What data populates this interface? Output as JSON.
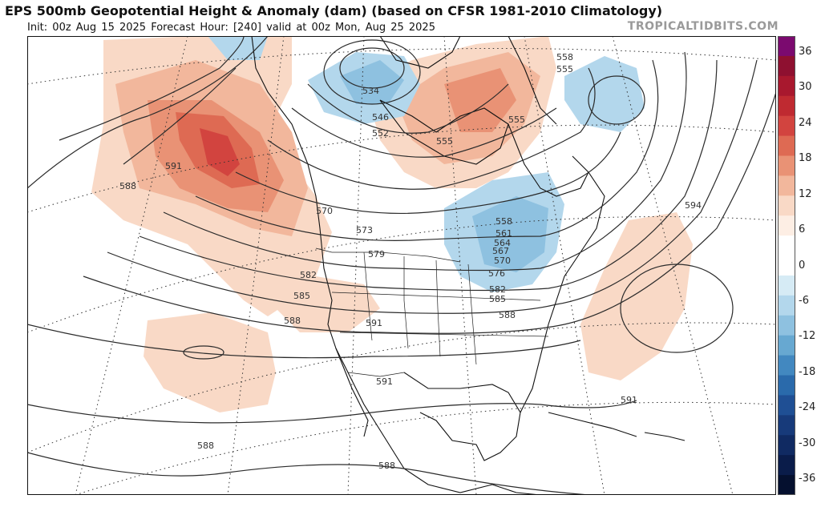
{
  "header": {
    "title": "EPS 500mb Geopotential Height & Anomaly (dam) (based on CFSR 1981-2010 Climatology)",
    "init": "Init: 00z Aug 15 2025",
    "forecast_hour": "Forecast Hour: [240]",
    "valid": "valid at 00z Mon, Aug 25 2025",
    "brand": "TROPICALTIDBITS.COM"
  },
  "colorbar": {
    "labels": [
      "36",
      "30",
      "24",
      "18",
      "12",
      "6",
      "0",
      "-6",
      "-12",
      "-18",
      "-24",
      "-30",
      "-36"
    ],
    "colors": [
      "#7b0a6f",
      "#8e1030",
      "#a8182e",
      "#bf2a31",
      "#d2443f",
      "#de6a53",
      "#e99275",
      "#f2b79c",
      "#f9d9c6",
      "#fdeee4",
      "#ffffff",
      "#ffffff",
      "#d6ebf5",
      "#b3d7ec",
      "#8ec1e0",
      "#67a8d1",
      "#4288c0",
      "#2a6aab",
      "#1f4f94",
      "#173a7a",
      "#102a62",
      "#0a1c4a",
      "#05102f"
    ]
  },
  "contours": {
    "labels": [
      "534",
      "546",
      "552",
      "555",
      "555",
      "558",
      "555",
      "570",
      "573",
      "579",
      "582",
      "585",
      "588",
      "588",
      "591",
      "591",
      "591",
      "591",
      "588",
      "588",
      "594",
      "558",
      "561",
      "564",
      "567",
      "570",
      "576",
      "582",
      "585",
      "588"
    ]
  }
}
